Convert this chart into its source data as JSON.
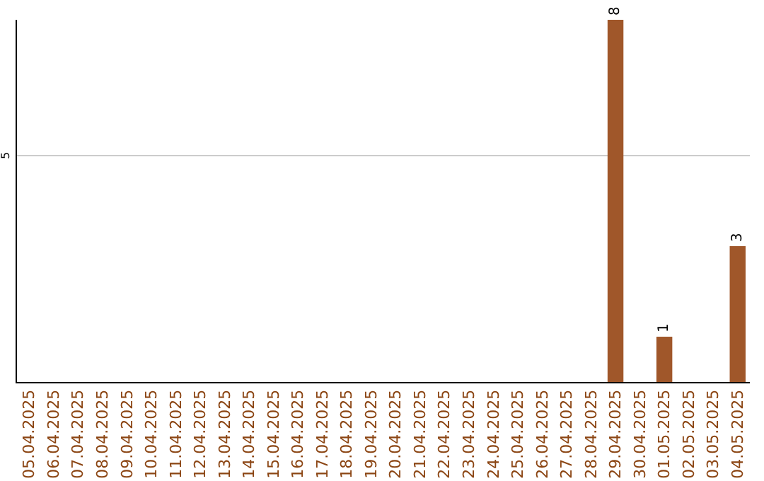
{
  "chart_data": {
    "type": "bar",
    "ylim": [
      0,
      8
    ],
    "data_labels": true,
    "categories": [
      "05.04.2025",
      "06.04.2025",
      "07.04.2025",
      "08.04.2025",
      "09.04.2025",
      "10.04.2025",
      "11.04.2025",
      "12.04.2025",
      "13.04.2025",
      "14.04.2025",
      "15.04.2025",
      "16.04.2025",
      "17.04.2025",
      "18.04.2025",
      "19.04.2025",
      "20.04.2025",
      "21.04.2025",
      "22.04.2025",
      "23.04.2025",
      "24.04.2025",
      "25.04.2025",
      "26.04.2025",
      "27.04.2025",
      "28.04.2025",
      "29.04.2025",
      "30.04.2025",
      "01.05.2025",
      "02.05.2025",
      "03.05.2025",
      "04.05.2025"
    ],
    "series": [
      {
        "color": "#a0572a",
        "values": [
          null,
          null,
          null,
          null,
          null,
          null,
          null,
          null,
          null,
          null,
          null,
          null,
          null,
          null,
          null,
          null,
          null,
          null,
          null,
          null,
          null,
          null,
          null,
          null,
          8,
          null,
          1,
          null,
          null,
          3
        ]
      }
    ],
    "ref_lines": [
      {
        "axis": "y",
        "value": 5,
        "label": "5",
        "color": "#cccccc"
      }
    ],
    "legend": false
  }
}
